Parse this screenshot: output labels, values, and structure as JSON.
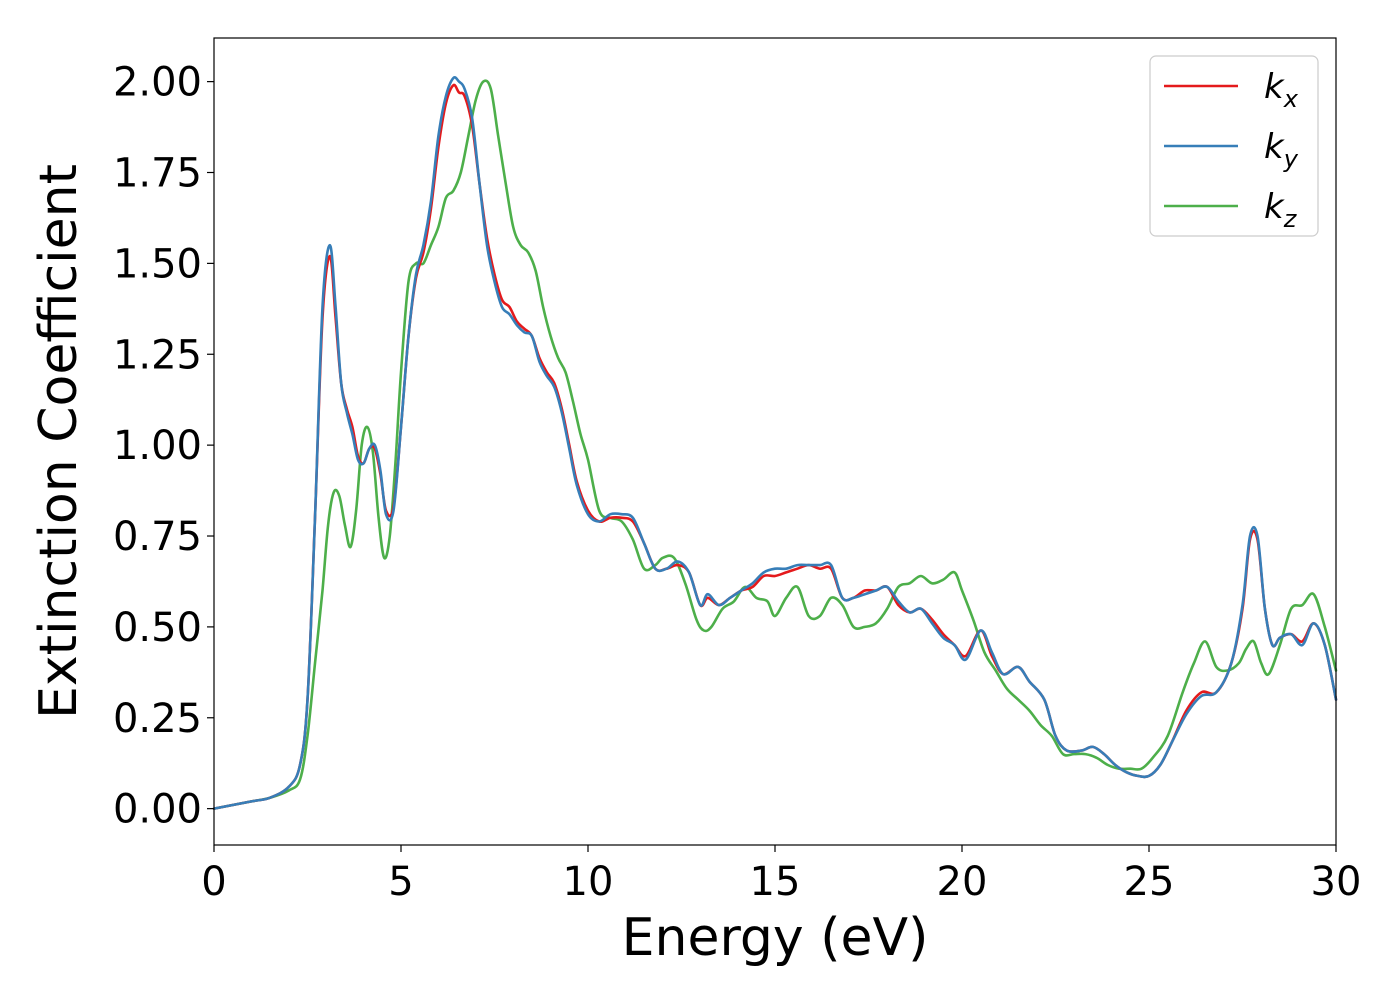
{
  "chart_data": {
    "type": "line",
    "title": "",
    "xlabel": "Energy (eV)",
    "ylabel": "Extinction Coefficient",
    "xlim": [
      0,
      30
    ],
    "ylim": [
      -0.1,
      2.12
    ],
    "xticks": [
      0,
      5,
      10,
      15,
      20,
      25,
      30
    ],
    "xtick_labels": [
      "0",
      "5",
      "10",
      "15",
      "20",
      "25",
      "30"
    ],
    "yticks": [
      0,
      0.25,
      0.5,
      0.75,
      1.0,
      1.25,
      1.5,
      1.75,
      2.0
    ],
    "ytick_labels": [
      "0.00",
      "0.25",
      "0.50",
      "0.75",
      "1.00",
      "1.25",
      "1.50",
      "1.75",
      "2.00"
    ],
    "grid": false,
    "legend_position": "top-right",
    "series": [
      {
        "name": "k",
        "subscript": "x",
        "color": "#e41a1c",
        "x": [
          0,
          1,
          1.5,
          2,
          2.3,
          2.5,
          2.7,
          2.9,
          3.1,
          3.25,
          3.4,
          3.55,
          3.7,
          3.85,
          4.0,
          4.15,
          4.3,
          4.45,
          4.6,
          4.8,
          5.0,
          5.2,
          5.4,
          5.6,
          5.8,
          6.0,
          6.2,
          6.4,
          6.55,
          6.7,
          6.9,
          7.1,
          7.3,
          7.5,
          7.7,
          7.9,
          8.1,
          8.3,
          8.5,
          8.7,
          8.9,
          9.1,
          9.3,
          9.5,
          9.7,
          10.0,
          10.3,
          10.6,
          10.9,
          11.2,
          11.5,
          11.8,
          12.1,
          12.4,
          12.7,
          13.0,
          13.2,
          13.5,
          13.8,
          14.1,
          14.4,
          14.7,
          15.0,
          15.3,
          15.6,
          15.9,
          16.2,
          16.5,
          16.8,
          17.1,
          17.4,
          17.7,
          18.0,
          18.3,
          18.6,
          18.9,
          19.2,
          19.5,
          19.8,
          20.1,
          20.5,
          20.8,
          21.1,
          21.5,
          21.8,
          22.2,
          22.5,
          22.8,
          23.2,
          23.5,
          23.8,
          24.1,
          24.4,
          24.7,
          25.0,
          25.3,
          25.6,
          26.0,
          26.4,
          26.8,
          27.2,
          27.5,
          27.7,
          27.9,
          28.1,
          28.3,
          28.5,
          28.8,
          29.1,
          29.4,
          29.7,
          30.0
        ],
        "y": [
          0.0,
          0.02,
          0.03,
          0.06,
          0.12,
          0.3,
          0.8,
          1.35,
          1.52,
          1.35,
          1.17,
          1.1,
          1.05,
          0.97,
          0.95,
          0.99,
          0.99,
          0.92,
          0.82,
          0.83,
          1.05,
          1.3,
          1.46,
          1.53,
          1.65,
          1.82,
          1.94,
          1.99,
          1.97,
          1.96,
          1.88,
          1.72,
          1.57,
          1.47,
          1.4,
          1.38,
          1.34,
          1.32,
          1.3,
          1.24,
          1.2,
          1.17,
          1.1,
          1.0,
          0.9,
          0.82,
          0.79,
          0.8,
          0.8,
          0.79,
          0.73,
          0.66,
          0.66,
          0.67,
          0.65,
          0.56,
          0.58,
          0.56,
          0.58,
          0.6,
          0.61,
          0.64,
          0.64,
          0.65,
          0.66,
          0.67,
          0.66,
          0.66,
          0.58,
          0.58,
          0.6,
          0.6,
          0.61,
          0.56,
          0.54,
          0.55,
          0.52,
          0.48,
          0.45,
          0.42,
          0.49,
          0.42,
          0.37,
          0.39,
          0.35,
          0.3,
          0.2,
          0.16,
          0.16,
          0.17,
          0.15,
          0.12,
          0.1,
          0.09,
          0.09,
          0.12,
          0.18,
          0.27,
          0.32,
          0.32,
          0.4,
          0.55,
          0.74,
          0.74,
          0.55,
          0.45,
          0.47,
          0.48,
          0.46,
          0.51,
          0.45,
          0.3
        ]
      },
      {
        "name": "k",
        "subscript": "y",
        "color": "#377eb8",
        "x": [
          0,
          1,
          1.5,
          2,
          2.3,
          2.5,
          2.7,
          2.9,
          3.1,
          3.25,
          3.4,
          3.55,
          3.7,
          3.85,
          4.0,
          4.15,
          4.3,
          4.45,
          4.6,
          4.8,
          5.0,
          5.2,
          5.4,
          5.6,
          5.8,
          6.0,
          6.2,
          6.4,
          6.55,
          6.7,
          6.9,
          7.1,
          7.3,
          7.5,
          7.7,
          7.9,
          8.1,
          8.3,
          8.5,
          8.7,
          8.9,
          9.1,
          9.3,
          9.5,
          9.7,
          10.0,
          10.3,
          10.6,
          10.9,
          11.2,
          11.5,
          11.8,
          12.1,
          12.4,
          12.7,
          13.0,
          13.2,
          13.5,
          13.8,
          14.1,
          14.4,
          14.7,
          15.0,
          15.3,
          15.6,
          15.9,
          16.2,
          16.5,
          16.8,
          17.1,
          17.4,
          17.7,
          18.0,
          18.3,
          18.6,
          18.9,
          19.2,
          19.5,
          19.8,
          20.1,
          20.5,
          20.8,
          21.1,
          21.5,
          21.8,
          22.2,
          22.5,
          22.8,
          23.2,
          23.5,
          23.8,
          24.1,
          24.4,
          24.7,
          25.0,
          25.3,
          25.6,
          26.0,
          26.4,
          26.8,
          27.2,
          27.5,
          27.7,
          27.9,
          28.1,
          28.3,
          28.5,
          28.8,
          29.1,
          29.4,
          29.7,
          30.0
        ],
        "y": [
          0.0,
          0.02,
          0.03,
          0.06,
          0.12,
          0.3,
          0.8,
          1.38,
          1.55,
          1.38,
          1.17,
          1.09,
          1.03,
          0.96,
          0.95,
          0.99,
          1.0,
          0.93,
          0.81,
          0.82,
          1.05,
          1.3,
          1.47,
          1.55,
          1.67,
          1.85,
          1.96,
          2.01,
          2.0,
          1.98,
          1.9,
          1.72,
          1.55,
          1.45,
          1.38,
          1.36,
          1.33,
          1.31,
          1.3,
          1.23,
          1.19,
          1.16,
          1.09,
          0.99,
          0.89,
          0.81,
          0.79,
          0.81,
          0.81,
          0.8,
          0.73,
          0.66,
          0.66,
          0.68,
          0.65,
          0.56,
          0.59,
          0.56,
          0.58,
          0.6,
          0.62,
          0.65,
          0.66,
          0.66,
          0.67,
          0.67,
          0.67,
          0.67,
          0.58,
          0.58,
          0.59,
          0.6,
          0.61,
          0.57,
          0.54,
          0.55,
          0.51,
          0.47,
          0.45,
          0.41,
          0.49,
          0.43,
          0.37,
          0.39,
          0.35,
          0.3,
          0.2,
          0.16,
          0.16,
          0.17,
          0.15,
          0.12,
          0.1,
          0.09,
          0.09,
          0.12,
          0.18,
          0.26,
          0.31,
          0.32,
          0.4,
          0.56,
          0.75,
          0.75,
          0.55,
          0.45,
          0.47,
          0.48,
          0.45,
          0.51,
          0.45,
          0.3
        ]
      },
      {
        "name": "k",
        "subscript": "z",
        "color": "#4daf4a",
        "x": [
          0,
          1,
          1.5,
          2,
          2.3,
          2.5,
          2.7,
          2.9,
          3.05,
          3.2,
          3.35,
          3.5,
          3.65,
          3.8,
          3.95,
          4.1,
          4.25,
          4.4,
          4.55,
          4.7,
          4.85,
          5.0,
          5.2,
          5.4,
          5.6,
          5.8,
          6.0,
          6.2,
          6.4,
          6.6,
          6.8,
          7.0,
          7.2,
          7.4,
          7.6,
          7.8,
          8.0,
          8.2,
          8.4,
          8.6,
          8.8,
          9.0,
          9.2,
          9.4,
          9.6,
          9.8,
          10.0,
          10.3,
          10.6,
          10.9,
          11.2,
          11.5,
          11.8,
          12.0,
          12.3,
          12.6,
          12.9,
          13.1,
          13.3,
          13.6,
          13.9,
          14.2,
          14.5,
          14.8,
          15.0,
          15.3,
          15.6,
          15.9,
          16.2,
          16.5,
          16.8,
          17.1,
          17.4,
          17.7,
          18.0,
          18.3,
          18.6,
          18.9,
          19.2,
          19.5,
          19.8,
          20.0,
          20.3,
          20.6,
          20.9,
          21.2,
          21.5,
          21.8,
          22.1,
          22.4,
          22.7,
          23.0,
          23.3,
          23.6,
          23.9,
          24.2,
          24.5,
          24.8,
          25.1,
          25.5,
          25.9,
          26.2,
          26.5,
          26.8,
          27.1,
          27.4,
          27.6,
          27.8,
          28.0,
          28.2,
          28.5,
          28.8,
          29.1,
          29.4,
          29.7,
          30.0
        ],
        "y": [
          0.0,
          0.02,
          0.03,
          0.05,
          0.08,
          0.2,
          0.4,
          0.6,
          0.78,
          0.87,
          0.86,
          0.78,
          0.72,
          0.82,
          1.0,
          1.05,
          0.98,
          0.8,
          0.69,
          0.75,
          0.95,
          1.2,
          1.45,
          1.5,
          1.5,
          1.55,
          1.6,
          1.68,
          1.7,
          1.75,
          1.85,
          1.95,
          2.0,
          1.98,
          1.85,
          1.72,
          1.6,
          1.55,
          1.53,
          1.48,
          1.38,
          1.3,
          1.24,
          1.2,
          1.12,
          1.03,
          0.96,
          0.82,
          0.8,
          0.79,
          0.74,
          0.66,
          0.67,
          0.69,
          0.69,
          0.62,
          0.52,
          0.49,
          0.5,
          0.55,
          0.57,
          0.61,
          0.58,
          0.57,
          0.53,
          0.58,
          0.61,
          0.53,
          0.53,
          0.58,
          0.56,
          0.5,
          0.5,
          0.51,
          0.55,
          0.61,
          0.62,
          0.64,
          0.62,
          0.63,
          0.65,
          0.6,
          0.52,
          0.43,
          0.38,
          0.33,
          0.3,
          0.27,
          0.23,
          0.2,
          0.15,
          0.15,
          0.15,
          0.14,
          0.12,
          0.11,
          0.11,
          0.11,
          0.14,
          0.2,
          0.32,
          0.4,
          0.46,
          0.39,
          0.38,
          0.4,
          0.44,
          0.46,
          0.4,
          0.37,
          0.45,
          0.55,
          0.56,
          0.59,
          0.5,
          0.38
        ]
      }
    ]
  }
}
